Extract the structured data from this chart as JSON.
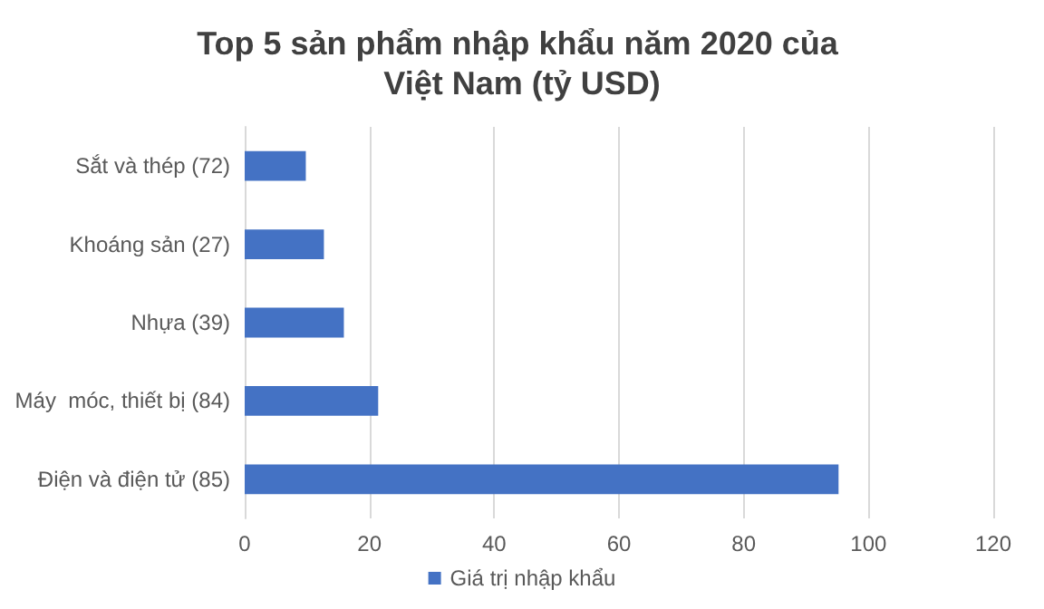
{
  "chart_data": {
    "type": "bar",
    "orientation": "horizontal",
    "title": "Top 5 sản phẩm nhập khẩu năm 2020 của Việt Nam (tỷ USD)",
    "categories": [
      "Sắt và thép (72)",
      "Khoáng sản (27)",
      "Nhựa (39)",
      "Máy  móc, thiết bị (84)",
      "Điện và điện tử (85)"
    ],
    "series": [
      {
        "name": "Giá trị nhập khẩu",
        "color": "#4472c4",
        "values": [
          9.8,
          12.7,
          15.9,
          21.4,
          95.2
        ]
      }
    ],
    "xlim": [
      0,
      120
    ],
    "xticks": [
      0,
      20,
      40,
      60,
      80,
      100,
      120
    ],
    "grid": "x",
    "legend": "bottom"
  }
}
